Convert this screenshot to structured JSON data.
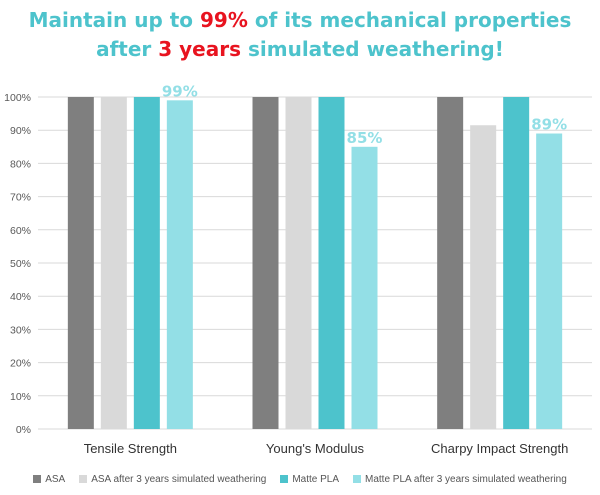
{
  "title": {
    "line1_a": "Maintain up to ",
    "line1_hl": "99%",
    "line1_b": " of its mechanical properties",
    "line2_a": "after ",
    "line2_hl": "3 years",
    "line2_b": " simulated weathering!"
  },
  "colors": {
    "title": "#4dc3cc",
    "highlight": "#e8131f",
    "asa": "#7f7f7f",
    "asa_weathered": "#d9d9d9",
    "matte_pla": "#4dc3cc",
    "matte_pla_weathered": "#93dfe6",
    "grid": "#d9d9d9"
  },
  "chart_data": {
    "type": "bar",
    "title": "Maintain up to 99% of its mechanical properties after 3 years simulated weathering!",
    "categories": [
      "Tensile Strength",
      "Young's Modulus",
      "Charpy Impact Strength"
    ],
    "series": [
      {
        "name": "ASA",
        "values": [
          100,
          100,
          100
        ]
      },
      {
        "name": "ASA after 3 years simulated weathering",
        "values": [
          100,
          100,
          91.5
        ]
      },
      {
        "name": "Matte PLA",
        "values": [
          100,
          100,
          100
        ]
      },
      {
        "name": "Matte PLA after 3 years simulated weathering",
        "values": [
          99,
          85,
          89
        ]
      }
    ],
    "data_labels": [
      "99%",
      "85%",
      "89%"
    ],
    "y_ticks": [
      "0%",
      "10%",
      "20%",
      "30%",
      "40%",
      "50%",
      "60%",
      "70%",
      "80%",
      "90%",
      "100%"
    ],
    "ylim": [
      0,
      100
    ],
    "grid": true,
    "legend_position": "bottom"
  }
}
